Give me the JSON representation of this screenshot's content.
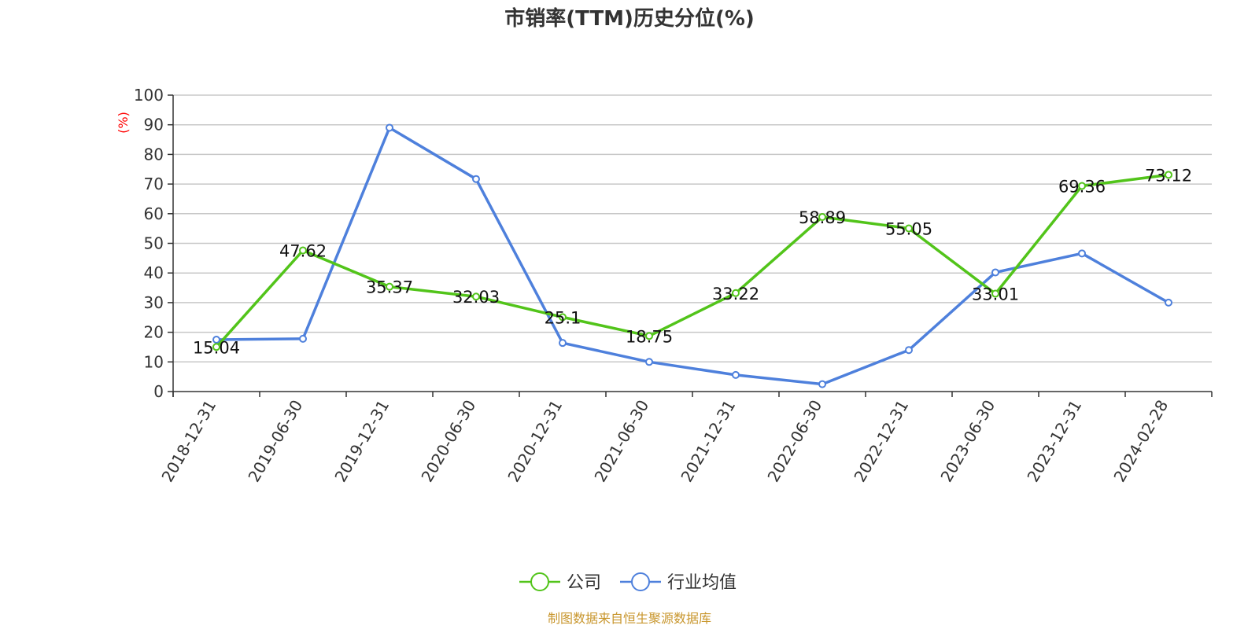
{
  "chart_data": {
    "type": "line",
    "title": "市销率(TTM)历史分位(%)",
    "ylabel": "(%)",
    "xlabel": "",
    "ylim": [
      0,
      100
    ],
    "yticks": [
      0,
      10,
      20,
      30,
      40,
      50,
      60,
      70,
      80,
      90,
      100
    ],
    "categories": [
      "2018-12-31",
      "2019-06-30",
      "2019-12-31",
      "2020-06-30",
      "2020-12-31",
      "2021-06-30",
      "2021-12-31",
      "2022-06-30",
      "2022-12-31",
      "2023-06-30",
      "2023-12-31",
      "2024-02-28"
    ],
    "series": [
      {
        "name": "公司",
        "color": "#52c41a",
        "values": [
          15.04,
          47.62,
          35.37,
          32.03,
          25.1,
          18.75,
          33.22,
          58.89,
          55.05,
          33.01,
          69.36,
          73.12
        ],
        "labels": [
          "15.04",
          "47.62",
          "35.37",
          "32.03",
          "25.1",
          "18.75",
          "33.22",
          "58.89",
          "55.05",
          "33.01",
          "69.36",
          "73.12"
        ]
      },
      {
        "name": "行业均值",
        "color": "#4e80dc",
        "values": [
          17.5,
          17.8,
          89,
          71.7,
          16.4,
          10,
          5.6,
          2.5,
          14,
          40.2,
          46.6,
          30
        ]
      }
    ],
    "grid": true,
    "legend_position": "bottom-center",
    "source": "制图数据来自恒生聚源数据库",
    "unit_color": "#ff0000",
    "source_color": "#c8962d"
  }
}
